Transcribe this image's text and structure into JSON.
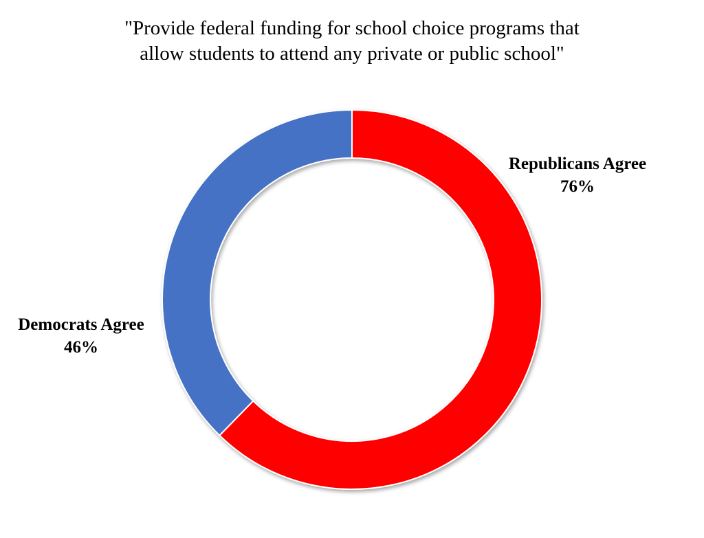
{
  "chart_data": {
    "type": "pie",
    "variant": "donut",
    "title_lines": [
      "\"Provide federal funding for school choice programs that",
      "allow students to attend any private or public school\""
    ],
    "slices": [
      {
        "name": "Republicans Agree",
        "value": 76,
        "value_label": "76%",
        "color": "#ff0000"
      },
      {
        "name": "Democrats Agree",
        "value": 46,
        "value_label": "46%",
        "color": "#4472c4"
      }
    ],
    "slice_border_color": "#ffffff",
    "legend": "none"
  }
}
